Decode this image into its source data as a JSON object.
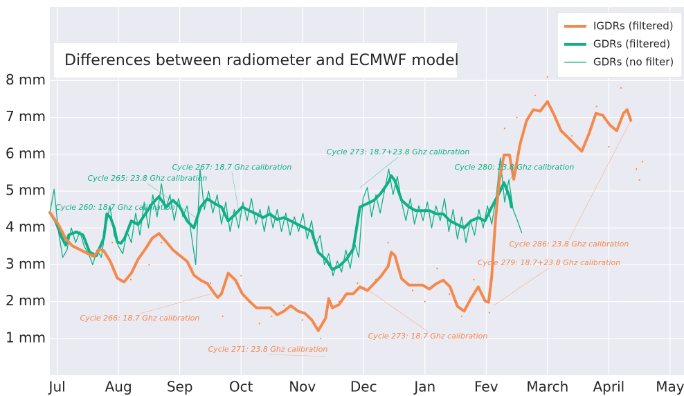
{
  "chart_data": {
    "type": "line",
    "title": "Differences between radiometer and ECMWF model",
    "xlim": [
      -0.12,
      10.25
    ],
    "xticks": [
      {
        "value": 0,
        "label": "Jul"
      },
      {
        "value": 1,
        "label": "Aug"
      },
      {
        "value": 2,
        "label": "Sep"
      },
      {
        "value": 3,
        "label": "Oct"
      },
      {
        "value": 4,
        "label": "Nov"
      },
      {
        "value": 5,
        "label": "Dec"
      },
      {
        "value": 6,
        "label": "Jan"
      },
      {
        "value": 7,
        "label": "Fev"
      },
      {
        "value": 8,
        "label": "March"
      },
      {
        "value": 9,
        "label": "April"
      },
      {
        "value": 10,
        "label": "May"
      }
    ],
    "ylim": [
      0,
      10
    ],
    "yticks": [
      {
        "value": 1,
        "label": "1 mm"
      },
      {
        "value": 2,
        "label": "2 mm"
      },
      {
        "value": 3,
        "label": "3 mm"
      },
      {
        "value": 4,
        "label": "4 mm"
      },
      {
        "value": 5,
        "label": "5 mm"
      },
      {
        "value": 6,
        "label": "6 mm"
      },
      {
        "value": 7,
        "label": "7 mm"
      },
      {
        "value": 8,
        "label": "8 mm"
      }
    ],
    "grid": true,
    "legend": "upper right",
    "series": [
      {
        "name": "IGDRs (filtered)",
        "color": "#f4894d",
        "line_width": 4,
        "marker": "line",
        "x": [
          -0.12,
          0.02,
          0.14,
          0.25,
          0.36,
          0.48,
          0.59,
          0.7,
          0.76,
          0.87,
          0.98,
          1.09,
          1.21,
          1.32,
          1.44,
          1.55,
          1.66,
          1.78,
          1.89,
          2.0,
          2.12,
          2.23,
          2.34,
          2.45,
          2.57,
          2.62,
          2.68,
          2.79,
          2.91,
          3.02,
          3.13,
          3.25,
          3.36,
          3.47,
          3.59,
          3.7,
          3.81,
          3.93,
          4.04,
          4.15,
          4.26,
          4.38,
          4.43,
          4.49,
          4.6,
          4.72,
          4.83,
          4.94,
          5.06,
          5.17,
          5.28,
          5.4,
          5.45,
          5.51,
          5.62,
          5.74,
          5.85,
          5.96,
          6.07,
          6.19,
          6.3,
          6.41,
          6.53,
          6.64,
          6.75,
          6.87,
          6.98,
          7.04,
          7.09,
          7.15,
          7.21,
          7.29,
          7.38,
          7.45,
          7.55,
          7.66,
          7.77,
          7.88,
          8.0,
          8.11,
          8.22,
          8.34,
          8.45,
          8.56,
          8.68,
          8.79,
          8.9,
          9.02,
          9.13,
          9.24,
          9.3,
          9.36
        ],
        "values": [
          4.42,
          4.09,
          3.7,
          3.51,
          3.42,
          3.32,
          3.23,
          3.42,
          3.38,
          3.08,
          2.64,
          2.53,
          2.77,
          3.15,
          3.43,
          3.72,
          3.85,
          3.62,
          3.4,
          3.25,
          3.09,
          2.72,
          2.58,
          2.49,
          2.21,
          2.11,
          2.21,
          2.77,
          2.58,
          2.21,
          2.02,
          1.83,
          1.83,
          1.83,
          1.64,
          1.74,
          1.89,
          1.74,
          1.68,
          1.51,
          1.21,
          1.55,
          2.08,
          1.83,
          1.92,
          2.21,
          2.21,
          2.4,
          2.3,
          2.49,
          2.68,
          2.96,
          3.34,
          3.25,
          2.62,
          2.45,
          2.45,
          2.45,
          2.34,
          2.49,
          2.58,
          2.4,
          1.87,
          1.74,
          2.08,
          2.4,
          2.02,
          1.98,
          2.68,
          4.19,
          5.23,
          5.98,
          5.98,
          5.32,
          6.26,
          6.92,
          7.21,
          7.17,
          7.43,
          7.06,
          6.64,
          6.45,
          6.26,
          6.08,
          6.57,
          7.11,
          7.06,
          6.79,
          6.64,
          7.11,
          7.21,
          6.92
        ]
      },
      {
        "name": "GDRs (filtered)",
        "color": "#10b086",
        "line_width": 4,
        "marker": "line",
        "x": [
          -0.12,
          -0.03,
          0.08,
          0.14,
          0.19,
          0.31,
          0.42,
          0.53,
          0.64,
          0.76,
          0.81,
          0.87,
          0.93,
          0.98,
          1.04,
          1.1,
          1.21,
          1.32,
          1.44,
          1.55,
          1.66,
          1.78,
          1.89,
          2.0,
          2.12,
          2.23,
          2.34,
          2.45,
          2.57,
          2.68,
          2.79,
          2.91,
          3.02,
          3.13,
          3.25,
          3.36,
          3.47,
          3.59,
          3.7,
          3.81,
          3.93,
          4.04,
          4.15,
          4.26,
          4.38,
          4.49,
          4.6,
          4.72,
          4.83,
          4.94,
          5.06,
          5.17,
          5.28,
          5.4,
          5.45,
          5.51,
          5.62,
          5.74,
          5.85,
          5.96,
          6.07,
          6.19,
          6.3,
          6.41,
          6.53,
          6.64,
          6.75,
          6.87,
          6.98,
          7.09,
          7.21,
          7.29,
          7.38,
          7.41
        ],
        "values": [
          4.42,
          4.19,
          3.72,
          3.53,
          3.81,
          3.89,
          3.81,
          3.34,
          3.25,
          3.72,
          4.38,
          4.28,
          4.0,
          3.62,
          3.58,
          3.72,
          4.19,
          4.09,
          4.38,
          4.66,
          4.85,
          4.57,
          4.75,
          4.57,
          4.19,
          4.0,
          4.57,
          4.79,
          4.66,
          4.57,
          4.19,
          4.38,
          4.57,
          4.47,
          4.38,
          4.28,
          4.38,
          4.23,
          4.28,
          4.19,
          4.09,
          4.0,
          3.91,
          3.34,
          3.15,
          2.87,
          2.96,
          3.15,
          3.43,
          4.57,
          4.66,
          4.75,
          4.94,
          5.23,
          5.42,
          5.28,
          4.75,
          4.57,
          4.47,
          4.47,
          4.47,
          4.38,
          4.38,
          4.19,
          4.09,
          4.0,
          4.19,
          4.28,
          4.19,
          4.57,
          4.94,
          5.23,
          4.85,
          4.57
        ]
      },
      {
        "name": "GDRs (no filter)",
        "color": "#10b086",
        "line_width": 1.3,
        "marker": "line",
        "x": [
          -0.12,
          -0.05,
          0.02,
          0.09,
          0.16,
          0.23,
          0.3,
          0.37,
          0.44,
          0.51,
          0.58,
          0.65,
          0.72,
          0.79,
          0.86,
          0.93,
          1.0,
          1.07,
          1.14,
          1.21,
          1.28,
          1.35,
          1.42,
          1.49,
          1.56,
          1.63,
          1.7,
          1.77,
          1.84,
          1.91,
          1.98,
          2.05,
          2.12,
          2.19,
          2.26,
          2.33,
          2.4,
          2.47,
          2.54,
          2.61,
          2.68,
          2.75,
          2.82,
          2.89,
          2.96,
          3.03,
          3.1,
          3.17,
          3.24,
          3.31,
          3.38,
          3.45,
          3.52,
          3.59,
          3.66,
          3.73,
          3.8,
          3.87,
          3.94,
          4.01,
          4.08,
          4.15,
          4.22,
          4.29,
          4.36,
          4.43,
          4.5,
          4.57,
          4.64,
          4.71,
          4.78,
          4.85,
          4.92,
          4.99,
          5.06,
          5.13,
          5.2,
          5.27,
          5.34,
          5.41,
          5.48,
          5.55,
          5.62,
          5.69,
          5.76,
          5.83,
          5.9,
          5.97,
          6.04,
          6.11,
          6.18,
          6.25,
          6.32,
          6.39,
          6.46,
          6.53,
          6.6,
          6.67,
          6.74,
          6.81,
          6.88,
          6.95,
          7.02,
          7.09,
          7.16,
          7.23,
          7.3,
          7.37,
          7.44,
          7.51,
          7.58
        ],
        "values": [
          4.4,
          5.05,
          3.9,
          3.2,
          3.4,
          4.0,
          3.6,
          3.9,
          3.5,
          3.3,
          3.0,
          3.4,
          3.2,
          4.0,
          4.6,
          3.8,
          3.5,
          3.3,
          3.9,
          3.6,
          4.4,
          3.8,
          4.7,
          4.0,
          4.9,
          4.3,
          5.2,
          4.5,
          4.9,
          4.2,
          4.8,
          4.3,
          4.6,
          3.8,
          3.0,
          5.6,
          4.5,
          5.0,
          4.4,
          4.9,
          4.1,
          4.7,
          3.9,
          4.5,
          4.0,
          4.7,
          4.2,
          4.8,
          4.1,
          4.5,
          3.9,
          4.6,
          4.0,
          4.5,
          3.9,
          4.4,
          3.8,
          4.3,
          3.9,
          4.4,
          3.7,
          4.2,
          3.5,
          3.8,
          3.0,
          3.3,
          2.7,
          3.1,
          2.8,
          3.4,
          2.9,
          3.6,
          3.2,
          4.8,
          5.1,
          4.3,
          4.9,
          4.4,
          5.0,
          5.6,
          4.9,
          5.4,
          4.7,
          4.2,
          4.8,
          4.1,
          4.6,
          4.2,
          4.7,
          4.0,
          4.6,
          4.2,
          4.8,
          3.9,
          4.5,
          3.7,
          4.3,
          3.6,
          4.2,
          3.8,
          4.5,
          4.0,
          4.6,
          4.1,
          4.8,
          5.9,
          4.7,
          5.3,
          4.5,
          4.2,
          3.87
        ]
      },
      {
        "color": "#f4894d",
        "marker": "dot",
        "x": [
          0.3,
          0.6,
          0.9,
          1.2,
          1.5,
          1.7,
          1.9,
          2.2,
          2.5,
          2.7,
          3.0,
          3.3,
          3.5,
          3.7,
          4.0,
          4.3,
          4.6,
          4.9,
          5.2,
          5.4,
          5.6,
          5.8,
          6.0,
          6.2,
          6.4,
          6.6,
          6.8,
          7.05,
          7.3,
          7.5,
          7.8,
          8.0,
          8.2,
          8.4,
          8.6,
          8.8,
          9.0,
          9.2,
          9.45,
          9.5,
          9.55
        ],
        "values": [
          3.5,
          3.3,
          3.6,
          2.6,
          3.0,
          3.6,
          3.4,
          2.9,
          2.5,
          1.6,
          2.7,
          1.4,
          1.6,
          1.9,
          1.5,
          1.0,
          2.0,
          2.5,
          2.6,
          3.6,
          2.8,
          2.3,
          2.0,
          2.9,
          2.2,
          1.6,
          2.6,
          1.7,
          6.7,
          7.0,
          7.6,
          8.1,
          6.8,
          6.5,
          6.3,
          7.3,
          6.2,
          7.8,
          5.6,
          5.3,
          5.8
        ]
      }
    ],
    "annotations": [
      {
        "text": "Cycle 260: 18.7 Ghz calibration",
        "color": "#10b086",
        "x": -0.06,
        "y": 4.42
      },
      {
        "text": "Cycle 265: 23.8 Ghz calibration",
        "color": "#10b086",
        "x": 2.26,
        "y": 4.28
      },
      {
        "text": "Cycle 267: 18.7 Ghz calibration",
        "color": "#10b086",
        "x": 2.99,
        "y": 4.19
      },
      {
        "text": "Cycle 273: 18.7+23.8 Ghz calibration",
        "color": "#10b086",
        "x": 4.94,
        "y": 5.09
      },
      {
        "text": "Cycle 280: 23.8 Ghz calibration",
        "color": "#10b086",
        "x": 7.32,
        "y": 5.13
      },
      {
        "text": "Cycle 266: 18.7 Ghz calibration",
        "color": "#f4894d",
        "x": 2.51,
        "y": 2.21
      },
      {
        "text": "Cycle 271: 23.8 Ghz calibration",
        "color": "#f4894d",
        "x": 4.38,
        "y": 0.51
      },
      {
        "text": "Cycle 273: 18.7 Ghz calibration",
        "color": "#f4894d",
        "x": 5.0,
        "y": 2.4
      },
      {
        "text": "Cycle 286: 23.8 Ghz calibration",
        "color": "#f4894d",
        "x": 9.36,
        "y": 6.92
      },
      {
        "text": "Cycle 279: 18.7+23.8 Ghz calibration",
        "color": "#f4894d",
        "x": 7.12,
        "y": 1.89
      }
    ]
  }
}
